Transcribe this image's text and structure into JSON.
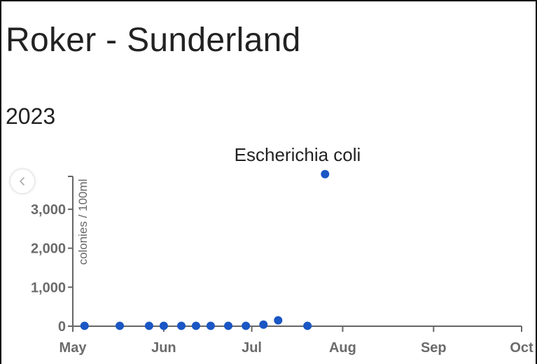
{
  "page": {
    "title": "Roker - Sunderland",
    "subtitle": "2023"
  },
  "colors": {
    "point": "#1a56c4",
    "axis": "#666666",
    "text": "#222222"
  },
  "chart_data": {
    "type": "scatter",
    "title": "Escherichia coli",
    "xlabel": "",
    "ylabel": "colonies / 100ml",
    "x_ticks": [
      "May",
      "Jun",
      "Jul",
      "Aug",
      "Sep",
      "Oct"
    ],
    "y_ticks": [
      "0",
      "1,000",
      "2,000",
      "3,000"
    ],
    "x_range": [
      "2023-05-01",
      "2023-10-01"
    ],
    "ylim": [
      0,
      3800
    ],
    "grid": false,
    "points": [
      {
        "x": "2023-05-05",
        "y": 10
      },
      {
        "x": "2023-05-17",
        "y": 10
      },
      {
        "x": "2023-05-27",
        "y": 10
      },
      {
        "x": "2023-06-01",
        "y": 10
      },
      {
        "x": "2023-06-07",
        "y": 10
      },
      {
        "x": "2023-06-12",
        "y": 10
      },
      {
        "x": "2023-06-17",
        "y": 10
      },
      {
        "x": "2023-06-23",
        "y": 10
      },
      {
        "x": "2023-06-29",
        "y": 10
      },
      {
        "x": "2023-07-05",
        "y": 40
      },
      {
        "x": "2023-07-10",
        "y": 150
      },
      {
        "x": "2023-07-20",
        "y": 10
      },
      {
        "x": "2023-07-26",
        "y": 3900
      }
    ]
  }
}
